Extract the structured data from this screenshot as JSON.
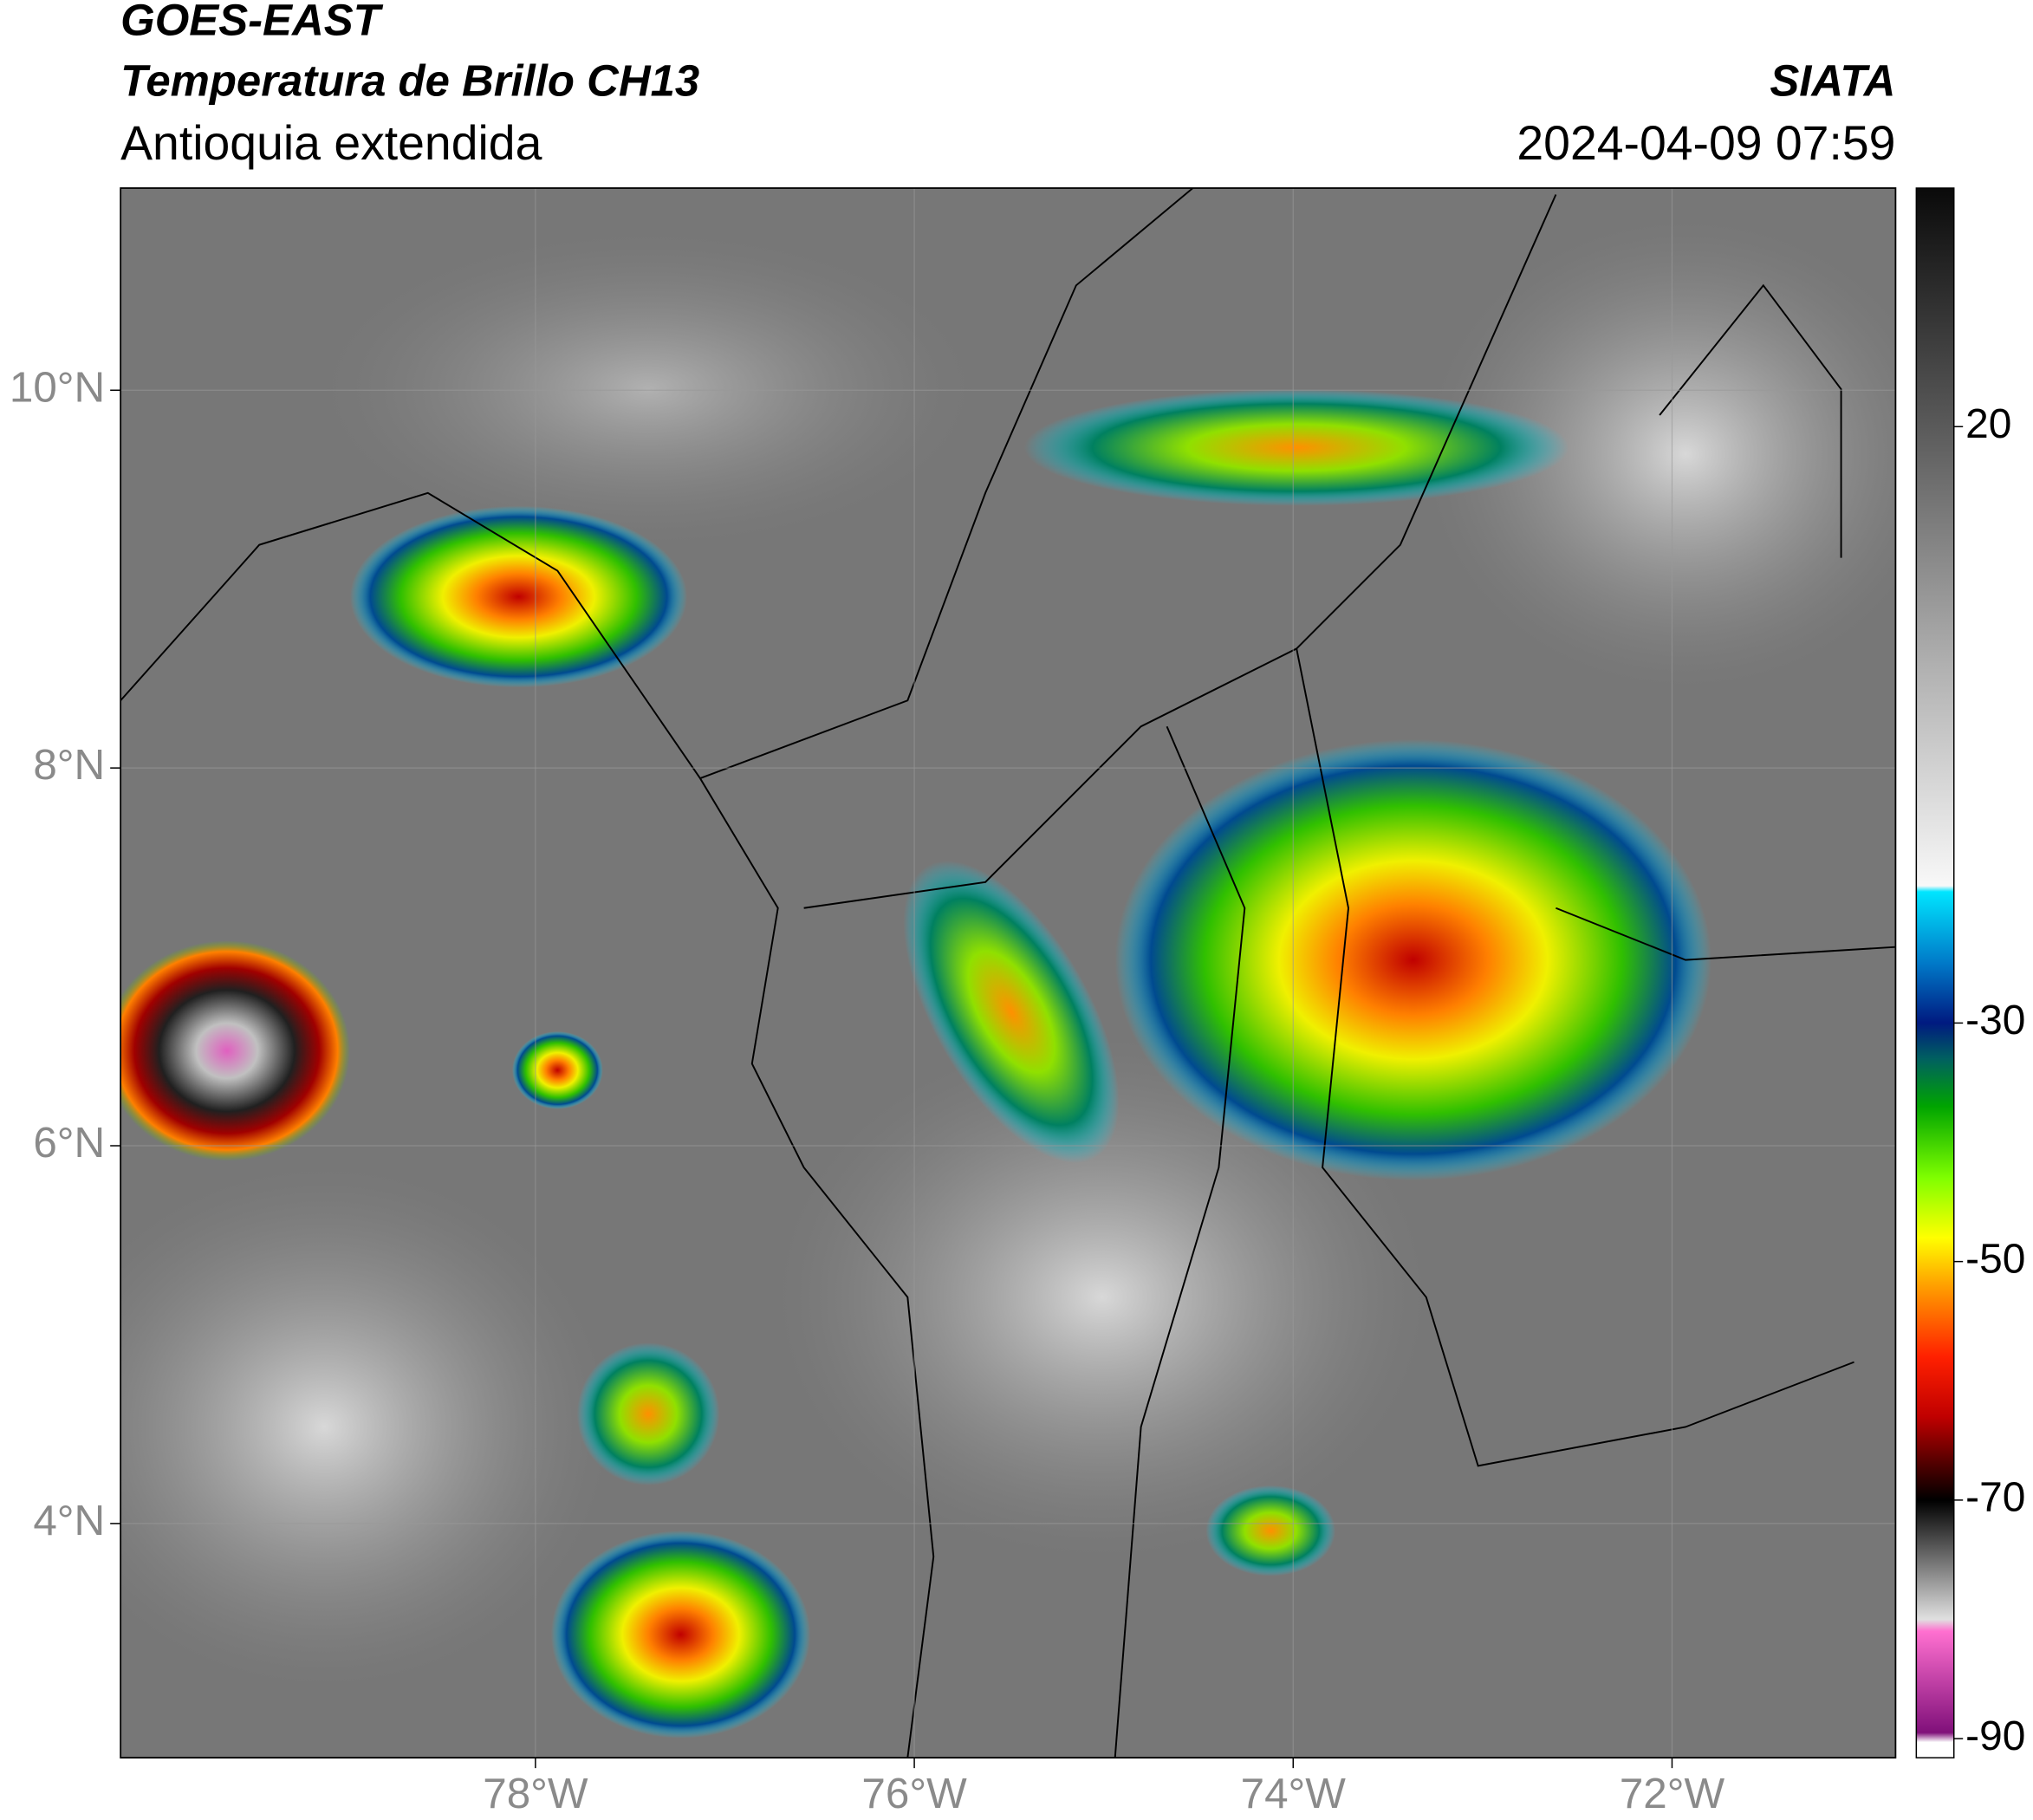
{
  "header": {
    "satellite": "GOES-EAST",
    "product": "Temperatura de Brillo CH13",
    "region": "Antioquia extendida",
    "source": "SIATA",
    "datetime": "2024-04-09 07:59"
  },
  "map": {
    "xlim": [
      -80.19,
      -70.82
    ],
    "ylim": [
      2.76,
      11.07
    ],
    "xticks": [
      {
        "value": -78,
        "label": "78°W"
      },
      {
        "value": -76,
        "label": "76°W"
      },
      {
        "value": -74,
        "label": "74°W"
      },
      {
        "value": -72,
        "label": "72°W"
      }
    ],
    "yticks": [
      {
        "value": 10,
        "label": "10°N"
      },
      {
        "value": 8,
        "label": "8°N"
      },
      {
        "value": 6,
        "label": "6°N"
      },
      {
        "value": 4,
        "label": "4°N"
      }
    ],
    "grid": true
  },
  "colorbar": {
    "lim": [
      -91.6,
      40
    ],
    "ticks": [
      20,
      -30,
      -50,
      -70,
      -90
    ],
    "stops": [
      {
        "value": 40,
        "color": "#0a0a0a"
      },
      {
        "value": 20,
        "color": "#5a5a5a"
      },
      {
        "value": 0,
        "color": "#b0b0b0"
      },
      {
        "value": -18.5,
        "color": "#f8f8f8"
      },
      {
        "value": -19,
        "color": "#00e5ff"
      },
      {
        "value": -25,
        "color": "#0079c8"
      },
      {
        "value": -30,
        "color": "#001a80"
      },
      {
        "value": -33,
        "color": "#006060"
      },
      {
        "value": -37,
        "color": "#00a400"
      },
      {
        "value": -43,
        "color": "#80ff00"
      },
      {
        "value": -48,
        "color": "#ffff00"
      },
      {
        "value": -52,
        "color": "#ffa000"
      },
      {
        "value": -58,
        "color": "#ff2000"
      },
      {
        "value": -63,
        "color": "#c00000"
      },
      {
        "value": -67,
        "color": "#500000"
      },
      {
        "value": -70,
        "color": "#000000"
      },
      {
        "value": -75,
        "color": "#707070"
      },
      {
        "value": -80,
        "color": "#e0e0e0"
      },
      {
        "value": -81,
        "color": "#ff70d0"
      },
      {
        "value": -89.5,
        "color": "#80107a"
      },
      {
        "value": -90.3,
        "color": "#ffffff"
      },
      {
        "value": -91.6,
        "color": "#ffffff"
      }
    ]
  }
}
